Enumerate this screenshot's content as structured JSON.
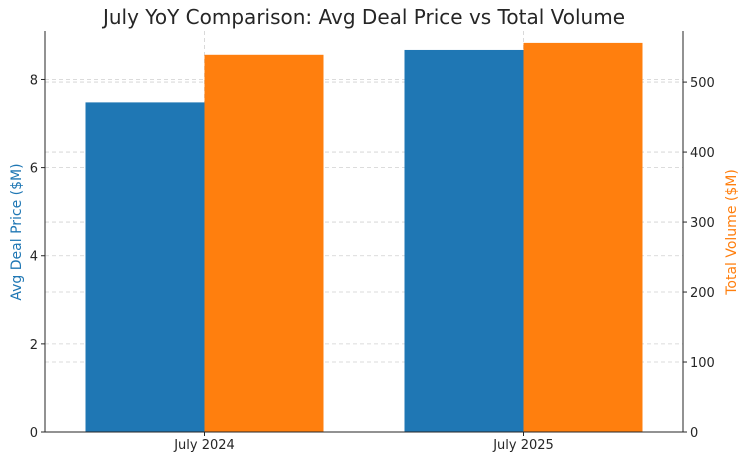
{
  "chart_data": {
    "type": "bar",
    "title": "July YoY Comparison: Avg Deal Price vs Total Volume",
    "categories": [
      "July 2024",
      "July 2025"
    ],
    "series": [
      {
        "name": "Avg Deal Price ($M)",
        "axis": "left",
        "color": "#1f77b4",
        "values": [
          7.48,
          8.67
        ]
      },
      {
        "name": "Total Volume ($M)",
        "axis": "right",
        "color": "#ff7f0e",
        "values": [
          539,
          556
        ]
      }
    ],
    "ylabel": "Avg Deal Price ($M)",
    "ylabel_right": "Total Volume ($M)",
    "ylim": [
      0,
      9.1
    ],
    "ylim_right": [
      0,
      573
    ],
    "yticks": [
      0,
      2,
      4,
      6,
      8
    ],
    "yticks_right": [
      0,
      100,
      200,
      300,
      400,
      500
    ],
    "grid": true,
    "legend": "none"
  }
}
